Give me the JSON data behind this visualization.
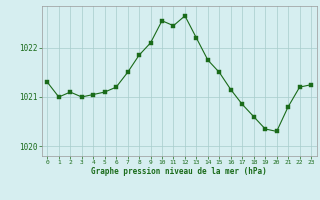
{
  "x": [
    0,
    1,
    2,
    3,
    4,
    5,
    6,
    7,
    8,
    9,
    10,
    11,
    12,
    13,
    14,
    15,
    16,
    17,
    18,
    19,
    20,
    21,
    22,
    23
  ],
  "y": [
    1021.3,
    1021.0,
    1021.1,
    1021.0,
    1021.05,
    1021.1,
    1021.2,
    1021.5,
    1021.85,
    1022.1,
    1022.55,
    1022.45,
    1022.65,
    1022.2,
    1021.75,
    1021.5,
    1021.15,
    1020.85,
    1020.6,
    1020.35,
    1020.3,
    1020.8,
    1021.2,
    1021.25
  ],
  "line_color": "#1a6b1a",
  "marker_color": "#1a6b1a",
  "bg_color": "#d6eef0",
  "grid_color": "#a8cccc",
  "xlabel": "Graphe pression niveau de la mer (hPa)",
  "xlabel_color": "#1a6b1a",
  "tick_color": "#1a6b1a",
  "ylim": [
    1019.8,
    1022.85
  ],
  "yticks": [
    1020,
    1021,
    1022
  ],
  "xticks": [
    0,
    1,
    2,
    3,
    4,
    5,
    6,
    7,
    8,
    9,
    10,
    11,
    12,
    13,
    14,
    15,
    16,
    17,
    18,
    19,
    20,
    21,
    22,
    23
  ],
  "figsize": [
    3.2,
    2.0
  ],
  "dpi": 100
}
